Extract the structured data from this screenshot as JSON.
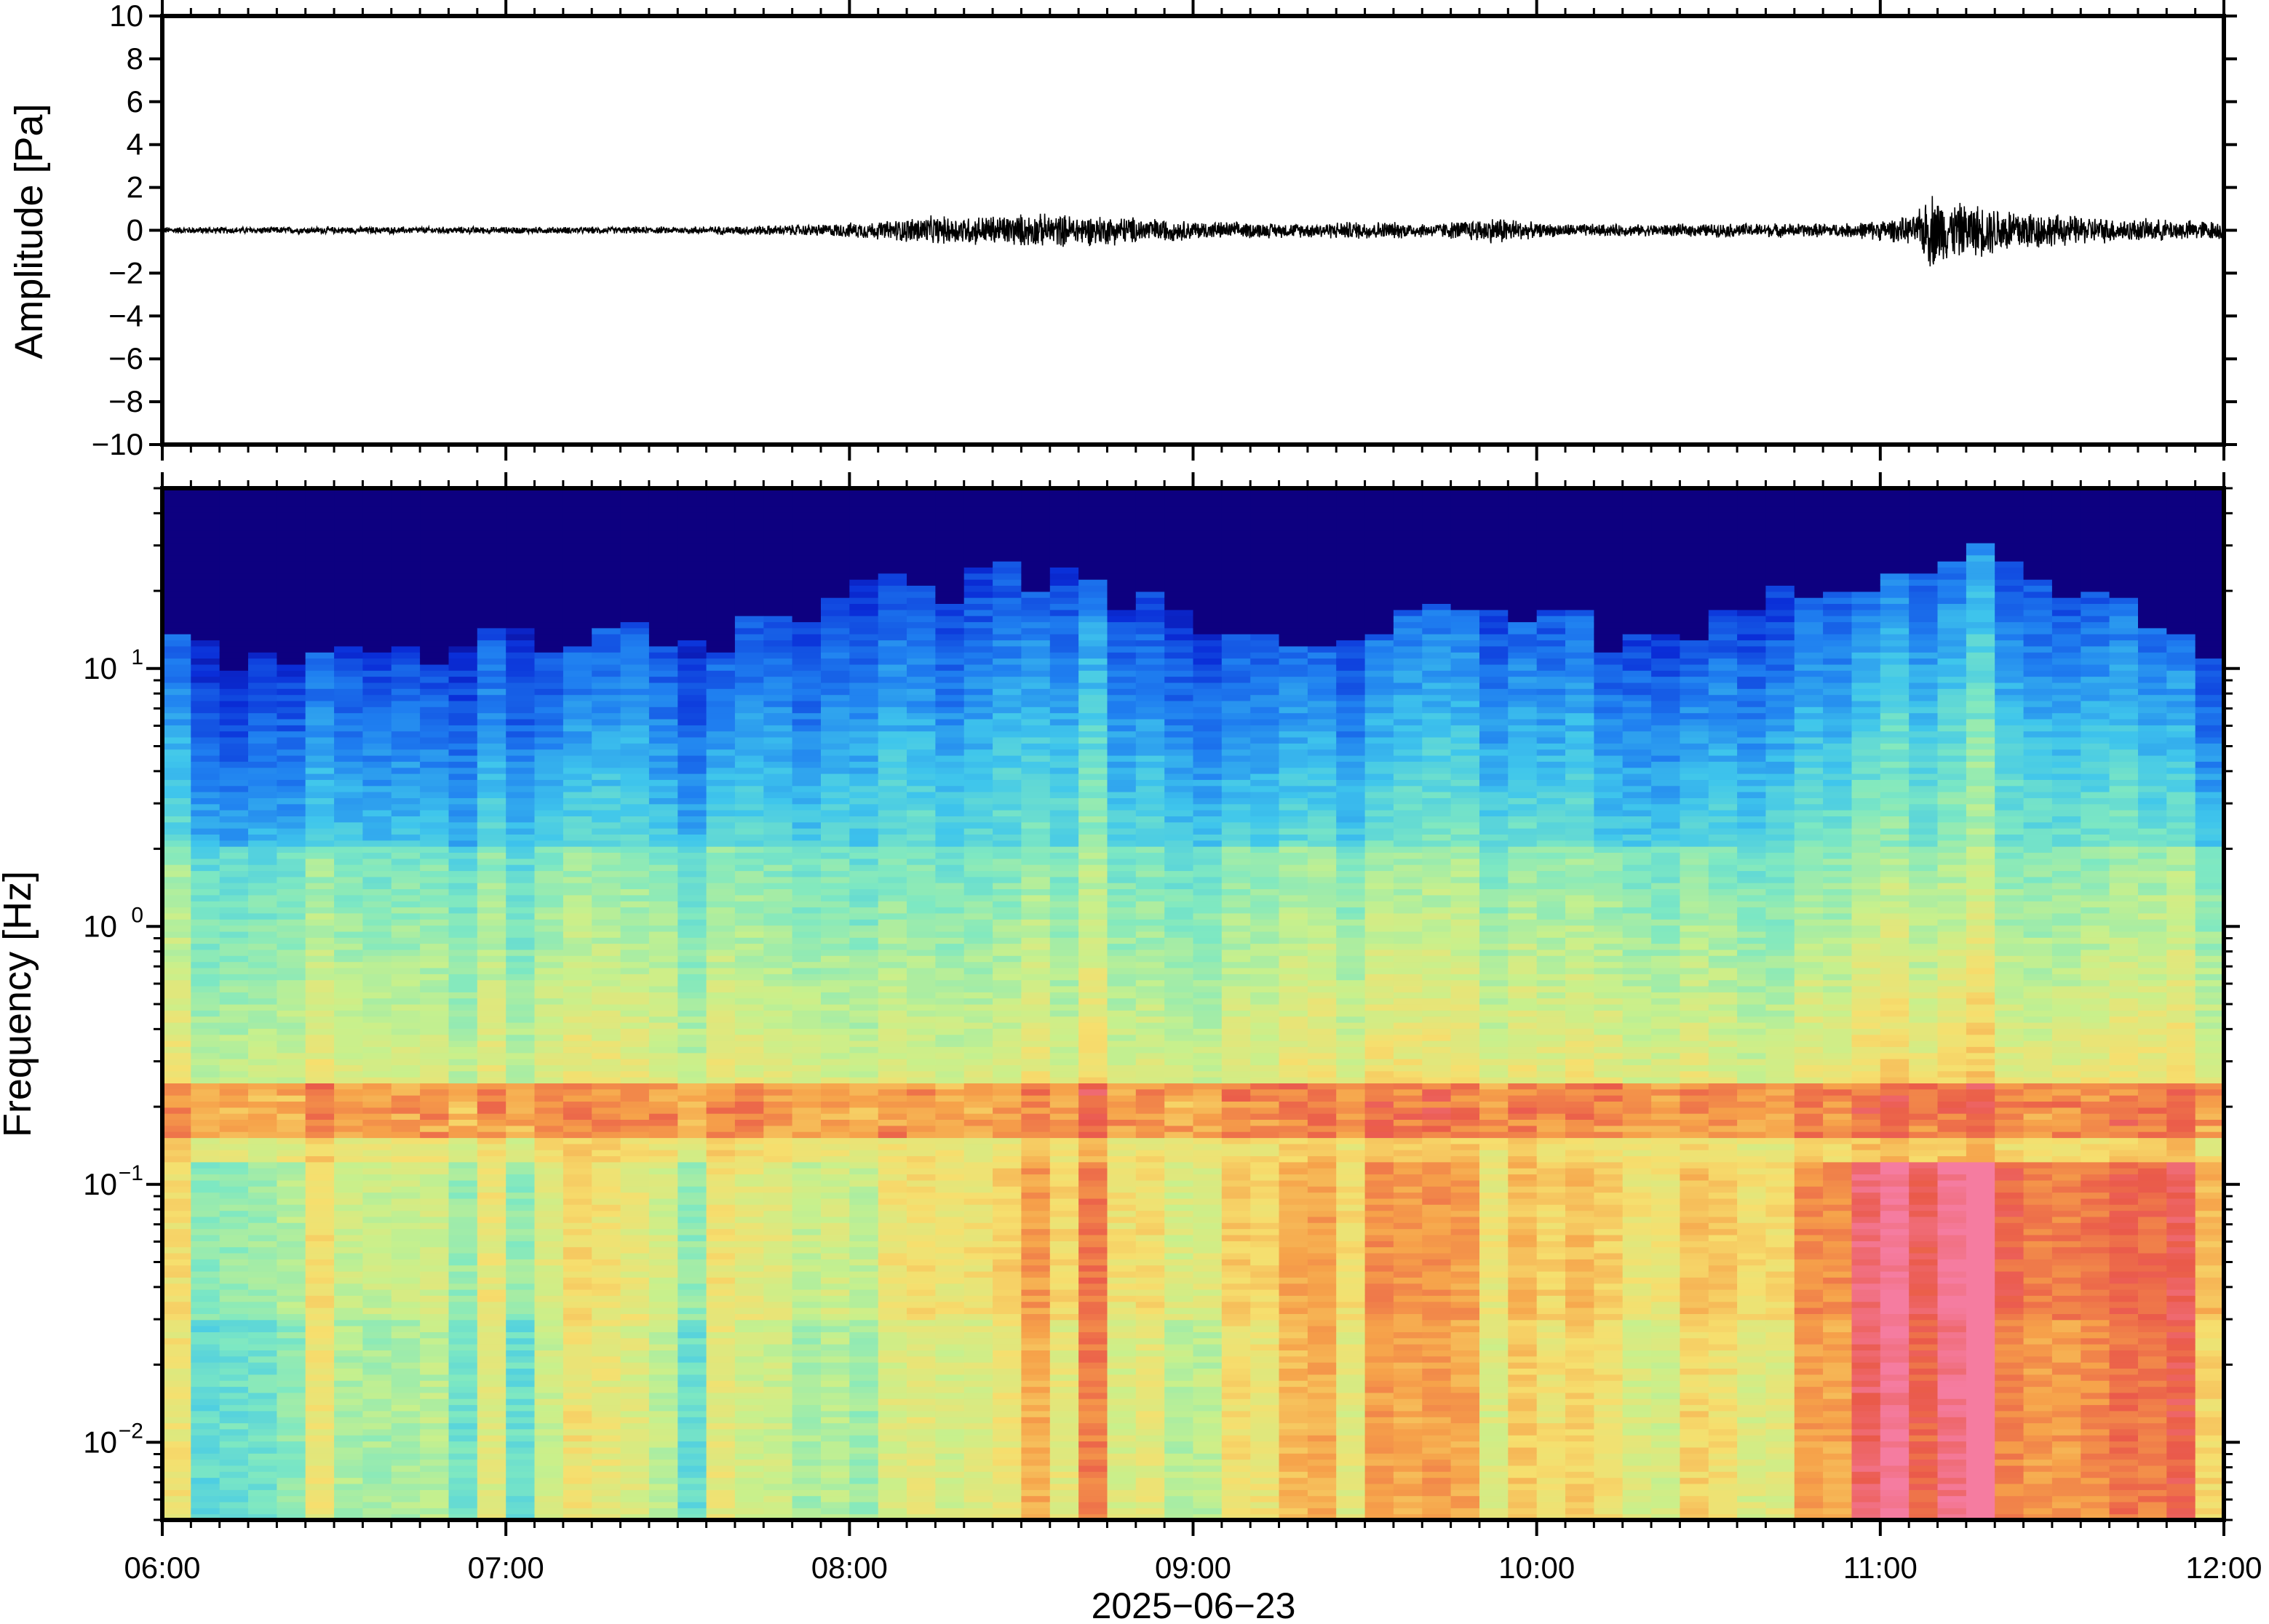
{
  "chart_data": [
    {
      "type": "line",
      "panel": "waveform",
      "ylabel": "Amplitude [Pa]",
      "ylim": [
        -10,
        10
      ],
      "yticks": [
        "10",
        "8",
        "6",
        "4",
        "2",
        "0",
        "−2",
        "−4",
        "−6",
        "−8",
        "−10"
      ],
      "x_range": [
        "06:00",
        "12:00"
      ],
      "envelope": {
        "x_hours": [
          6.0,
          6.5,
          7.0,
          7.5,
          7.9,
          8.1,
          8.2,
          8.3,
          8.5,
          8.6,
          8.8,
          9.0,
          9.3,
          9.5,
          9.7,
          9.9,
          10.0,
          10.3,
          10.6,
          10.9,
          11.1,
          11.15,
          11.2,
          11.3,
          11.4,
          11.5,
          11.7,
          12.0
        ],
        "amplitude_pa": [
          0.15,
          0.15,
          0.15,
          0.15,
          0.25,
          0.4,
          0.6,
          0.6,
          0.7,
          0.7,
          0.6,
          0.4,
          0.3,
          0.4,
          0.3,
          0.6,
          0.3,
          0.25,
          0.3,
          0.3,
          0.6,
          1.7,
          1.2,
          1.1,
          1.0,
          0.7,
          0.5,
          0.4
        ]
      }
    },
    {
      "type": "heatmap",
      "panel": "spectrogram",
      "ylabel": "Frequency [Hz]",
      "xlabel": "2025−06−23",
      "yscale": "log",
      "ylim_hz": [
        0.005,
        50
      ],
      "ytick_labels": [
        {
          "base": "10",
          "exp": "1",
          "value": 10
        },
        {
          "base": "10",
          "exp": "0",
          "value": 1
        },
        {
          "base": "10",
          "exp": "−1",
          "value": 0.1
        },
        {
          "base": "10",
          "exp": "−2",
          "value": 0.01
        }
      ],
      "xtick_labels": [
        "06:00",
        "07:00",
        "08:00",
        "09:00",
        "10:00",
        "11:00",
        "12:00"
      ],
      "colormap": [
        "#0d0080",
        "#0a2ed8",
        "#1f7ff0",
        "#3fc6ec",
        "#7ee8c2",
        "#c8f08c",
        "#f6df6e",
        "#f6a24a",
        "#ea5a4a",
        "#f57ca0"
      ],
      "noise_floor_top_hz": {
        "x_hours": [
          6.0,
          6.5,
          7.0,
          7.3,
          7.6,
          7.9,
          8.1,
          8.3,
          8.5,
          8.7,
          8.9,
          9.1,
          9.3,
          9.5,
          9.7,
          9.9,
          10.1,
          10.3,
          10.5,
          10.7,
          10.9,
          11.1,
          11.3,
          11.5,
          11.7,
          12.0
        ],
        "hz": [
          12,
          11,
          13,
          14,
          13,
          17,
          22,
          20,
          24,
          20,
          19,
          13,
          11,
          14,
          16,
          19,
          15,
          12,
          15,
          19,
          20,
          22,
          28,
          22,
          18,
          11
        ]
      },
      "band_hz": [
        0.15,
        0.25
      ],
      "band_level": 0.78,
      "activity": {
        "x_hours": [
          6.0,
          7.0,
          7.5,
          8.0,
          8.3,
          8.6,
          9.0,
          9.4,
          9.6,
          10.0,
          10.4,
          10.8,
          11.0,
          11.2,
          11.3,
          11.5,
          11.8,
          12.0
        ],
        "level": [
          0.1,
          0.15,
          0.1,
          0.2,
          0.45,
          0.5,
          0.35,
          0.4,
          0.45,
          0.3,
          0.4,
          0.6,
          0.85,
          1.0,
          1.0,
          0.8,
          0.7,
          0.65
        ]
      }
    }
  ]
}
